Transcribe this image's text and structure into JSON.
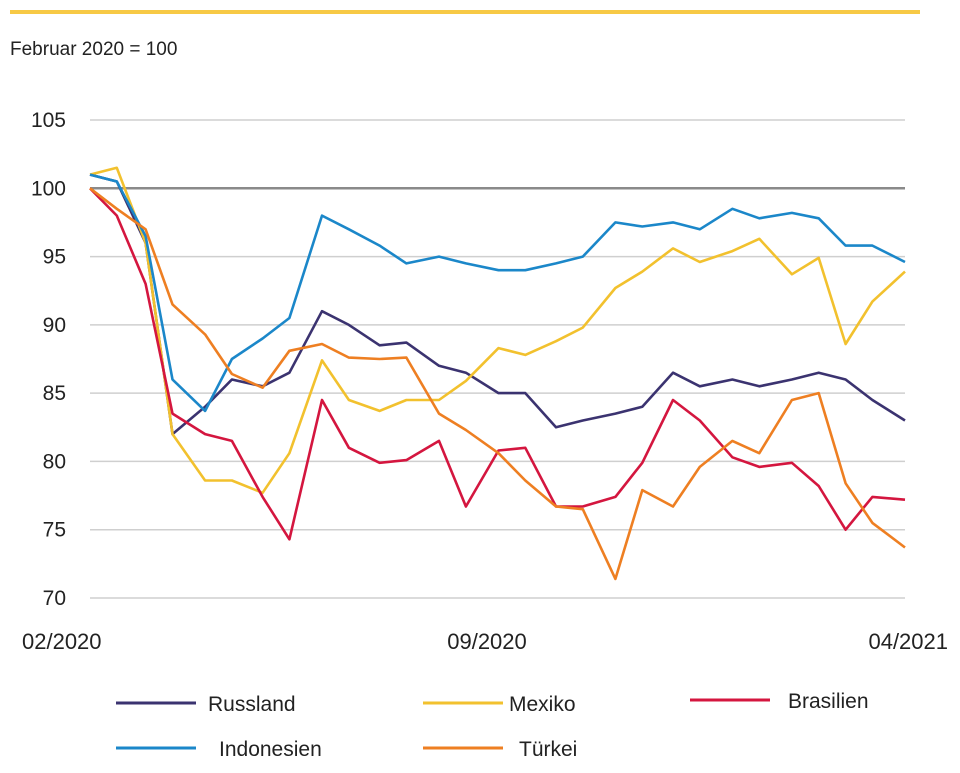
{
  "header": {
    "subtitle": "Februar 2020 = 100",
    "accent_color": "#f7c945"
  },
  "chart_data": {
    "type": "line",
    "title": "",
    "subtitle": "Februar 2020 = 100",
    "xlabel": "",
    "ylabel": "",
    "ylim": [
      70,
      105
    ],
    "yticks": [
      105,
      100,
      95,
      90,
      85,
      80,
      75,
      70
    ],
    "xlim": [
      "2020-02-01",
      "2021-04-01"
    ],
    "xticks": [
      {
        "date": "2020-02-01",
        "label": "02/2020"
      },
      {
        "date": "2020-09-01",
        "label": "09/2020"
      },
      {
        "date": "2021-04-01",
        "label": "04/2021"
      }
    ],
    "reference_line": 100,
    "grid": true,
    "legend_position": "bottom",
    "x": [
      "2020-02-01",
      "2020-02-15",
      "2020-03-01",
      "2020-03-15",
      "2020-04-01",
      "2020-04-15",
      "2020-05-01",
      "2020-05-15",
      "2020-06-01",
      "2020-06-15",
      "2020-07-01",
      "2020-07-15",
      "2020-08-01",
      "2020-08-15",
      "2020-09-01",
      "2020-09-15",
      "2020-10-01",
      "2020-10-15",
      "2020-11-01",
      "2020-11-15",
      "2020-12-01",
      "2020-12-15",
      "2021-01-01",
      "2021-01-15",
      "2021-02-01",
      "2021-02-15",
      "2021-03-01",
      "2021-03-15",
      "2021-04-01"
    ],
    "series": [
      {
        "name": "Russland",
        "color": "#3b3370",
        "values": [
          101,
          100.5,
          96,
          82,
          84,
          86,
          85.5,
          86.5,
          91,
          90,
          88.5,
          88.7,
          87,
          86.5,
          85,
          85,
          82.5,
          83,
          83.5,
          84,
          86.5,
          85.5,
          86,
          85.5,
          86,
          86.5,
          86,
          84.5,
          83
        ]
      },
      {
        "name": "Mexiko",
        "color": "#f2c12e",
        "values": [
          101,
          101.5,
          96,
          82,
          78.6,
          78.6,
          77.7,
          80.6,
          87.4,
          84.5,
          83.7,
          84.5,
          84.5,
          85.9,
          88.3,
          87.8,
          88.8,
          89.8,
          92.7,
          93.9,
          95.6,
          94.6,
          95.4,
          96.3,
          93.7,
          94.9,
          88.6,
          91.7,
          93.9
        ]
      },
      {
        "name": "Brasilien",
        "color": "#d4163f",
        "values": [
          100,
          98,
          93,
          83.5,
          82,
          81.5,
          77.4,
          74.3,
          84.5,
          81,
          79.9,
          80.1,
          81.5,
          76.7,
          80.8,
          81,
          76.7,
          76.7,
          77.4,
          79.9,
          84.5,
          83,
          80.3,
          79.6,
          79.9,
          78.2,
          75,
          77.4,
          77.2
        ]
      },
      {
        "name": "Indonesien",
        "color": "#1b87c9",
        "values": [
          101,
          100.5,
          96.5,
          86,
          83.7,
          87.5,
          89,
          90.5,
          98,
          97,
          95.8,
          94.5,
          95,
          94.5,
          94,
          94,
          94.5,
          95,
          97.5,
          97.2,
          97.5,
          97,
          98.5,
          97.8,
          98.2,
          97.8,
          95.8,
          95.8,
          94.6
        ]
      },
      {
        "name": "Türkei",
        "color": "#ee7f22",
        "values": [
          100,
          98.5,
          97,
          91.5,
          89.3,
          86.4,
          85.4,
          88.1,
          88.6,
          87.6,
          87.5,
          87.6,
          83.5,
          82.3,
          80.6,
          78.6,
          76.7,
          76.5,
          71.4,
          77.9,
          76.7,
          79.6,
          81.5,
          80.6,
          84.5,
          85,
          78.4,
          75.5,
          73.7
        ]
      }
    ]
  }
}
